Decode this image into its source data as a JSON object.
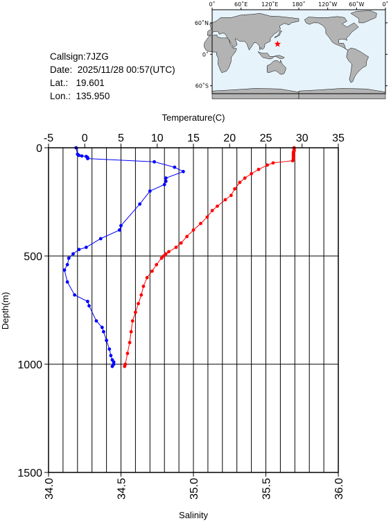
{
  "info": {
    "callsign": "Callsign:7JZG",
    "date": "Date:  2025/11/28 00:57(UTC)",
    "lat": "Lat.:   19.601",
    "lon": "Lon.:  135.950"
  },
  "map": {
    "top_labels": [
      "0˚",
      "60˚E",
      "120˚E",
      "180˚",
      "120˚W",
      "60˚W",
      "0˚"
    ],
    "side_labels": [
      "60˚N",
      "0˚",
      "60˚S"
    ],
    "station": {
      "lat": 19.601,
      "lon": 135.95
    },
    "colors": {
      "ocean": "#e6f3fb",
      "land": "#b3b3b3",
      "marker": "#ff0000"
    }
  },
  "chart_data": {
    "type": "line",
    "temperature_axis": {
      "label": "Temperature(C)",
      "range": [
        -5,
        35
      ],
      "ticks": [
        "-5",
        "0",
        "5",
        "10",
        "15",
        "20",
        "25",
        "30",
        "35"
      ]
    },
    "salinity_axis": {
      "label": "Salinity",
      "range": [
        34.0,
        36.0
      ],
      "ticks": [
        "34.0",
        "34.5",
        "35.0",
        "35.5",
        "36.0"
      ]
    },
    "depth_axis": {
      "label": "Depth(m)",
      "range": [
        0,
        1500
      ],
      "ticks": [
        "0",
        "500",
        "1000",
        "1500"
      ],
      "inverted": true
    },
    "grid": true,
    "series": [
      {
        "name": "Temperature(C)",
        "color": "#ff0000",
        "x_axis": "temperature",
        "points": [
          [
            28.9,
            0
          ],
          [
            28.9,
            5
          ],
          [
            28.9,
            10
          ],
          [
            28.9,
            15
          ],
          [
            28.8,
            20
          ],
          [
            28.8,
            25
          ],
          [
            28.8,
            30
          ],
          [
            28.8,
            35
          ],
          [
            28.8,
            40
          ],
          [
            28.8,
            45
          ],
          [
            28.8,
            50
          ],
          [
            28.8,
            55
          ],
          [
            28.7,
            60
          ],
          [
            26.0,
            70
          ],
          [
            25.2,
            80
          ],
          [
            24.0,
            100
          ],
          [
            23.0,
            120
          ],
          [
            22.1,
            140
          ],
          [
            21.4,
            160
          ],
          [
            20.7,
            190
          ],
          [
            20.2,
            220
          ],
          [
            19.4,
            240
          ],
          [
            18.3,
            270
          ],
          [
            17.6,
            290
          ],
          [
            16.9,
            320
          ],
          [
            16.0,
            350
          ],
          [
            15.0,
            380
          ],
          [
            14.1,
            410
          ],
          [
            13.3,
            440
          ],
          [
            12.6,
            460
          ],
          [
            11.6,
            480
          ],
          [
            11.2,
            490
          ],
          [
            10.9,
            500
          ],
          [
            10.6,
            510
          ],
          [
            9.9,
            540
          ],
          [
            9.3,
            570
          ],
          [
            8.6,
            600
          ],
          [
            8.1,
            640
          ],
          [
            7.8,
            680
          ],
          [
            7.4,
            720
          ],
          [
            7.0,
            760
          ],
          [
            6.6,
            800
          ],
          [
            6.4,
            850
          ],
          [
            6.2,
            900
          ],
          [
            5.9,
            950
          ],
          [
            5.6,
            1000
          ],
          [
            5.5,
            1010
          ]
        ]
      },
      {
        "name": "Salinity",
        "color": "#0000ff",
        "x_axis": "salinity",
        "points": [
          [
            34.19,
            0
          ],
          [
            34.2,
            30
          ],
          [
            34.21,
            35
          ],
          [
            34.23,
            38
          ],
          [
            34.26,
            40
          ],
          [
            34.27,
            45
          ],
          [
            34.27,
            50
          ],
          [
            34.73,
            65
          ],
          [
            34.87,
            90
          ],
          [
            34.93,
            110
          ],
          [
            34.81,
            140
          ],
          [
            34.81,
            155
          ],
          [
            34.8,
            170
          ],
          [
            34.7,
            200
          ],
          [
            34.63,
            260
          ],
          [
            34.5,
            360
          ],
          [
            34.49,
            380
          ],
          [
            34.36,
            420
          ],
          [
            34.26,
            460
          ],
          [
            34.21,
            470
          ],
          [
            34.17,
            490
          ],
          [
            34.14,
            510
          ],
          [
            34.13,
            540
          ],
          [
            34.11,
            565
          ],
          [
            34.13,
            620
          ],
          [
            34.18,
            680
          ],
          [
            34.27,
            710
          ],
          [
            34.28,
            730
          ],
          [
            34.33,
            800
          ],
          [
            34.37,
            830
          ],
          [
            34.38,
            850
          ],
          [
            34.4,
            890
          ],
          [
            34.42,
            930
          ],
          [
            34.43,
            960
          ],
          [
            34.44,
            980
          ],
          [
            34.45,
            990
          ],
          [
            34.45,
            1000
          ],
          [
            34.44,
            1010
          ]
        ]
      }
    ]
  }
}
